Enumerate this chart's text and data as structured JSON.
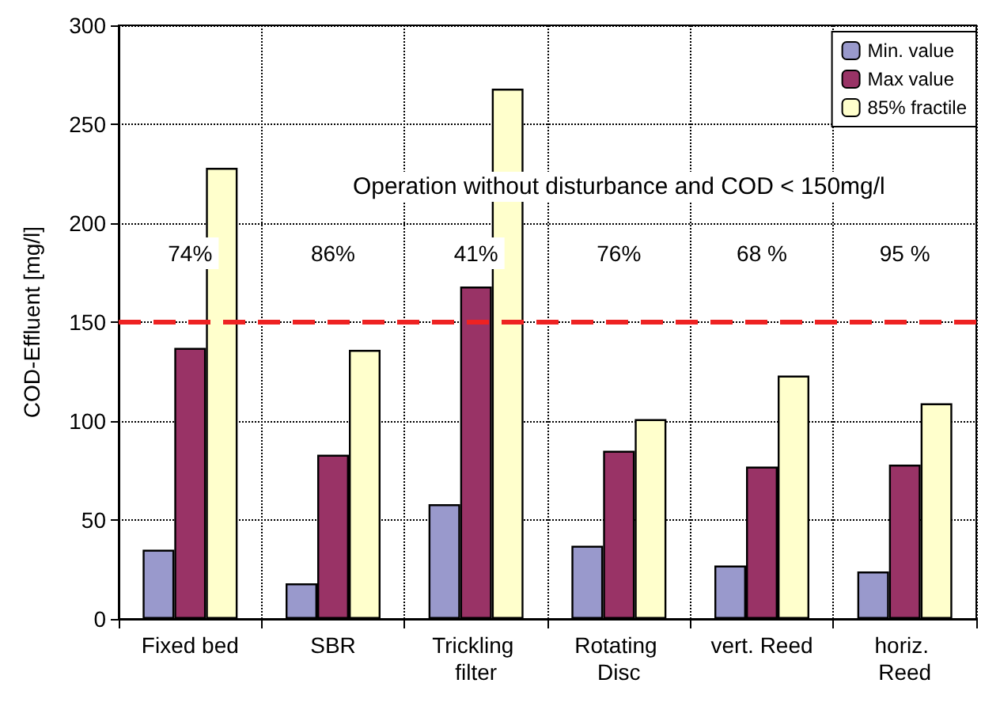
{
  "chart_data": {
    "type": "bar",
    "categories": [
      "Fixed bed",
      "SBR",
      "Trickling filter",
      "Rotating Disc",
      "vert. Reed",
      "horiz. Reed"
    ],
    "series": [
      {
        "name": "Min. value",
        "color": "#9999cc",
        "values": [
          35,
          18,
          58,
          37,
          27,
          24
        ]
      },
      {
        "name": "Max value",
        "color": "#993366",
        "values": [
          137,
          83,
          168,
          85,
          77,
          78
        ]
      },
      {
        "name": "85% fractile",
        "color": "#ffffcc",
        "values": [
          228,
          136,
          268,
          101,
          123,
          109
        ]
      }
    ],
    "ylabel": "COD-Effluent [mg/l]",
    "ylim": [
      0,
      300
    ],
    "yticks": [
      0,
      50,
      100,
      150,
      200,
      250,
      300
    ],
    "ref_lines": [
      {
        "axis": "y",
        "value": 150,
        "color": "#ee2222",
        "line_style": "dashed"
      }
    ],
    "annotations": [
      "Operation without disturbance and COD < 150mg/l",
      "74%",
      "86%",
      "41%",
      "76%",
      "68 %",
      "95 %"
    ],
    "grid": true,
    "legend": "top right"
  }
}
